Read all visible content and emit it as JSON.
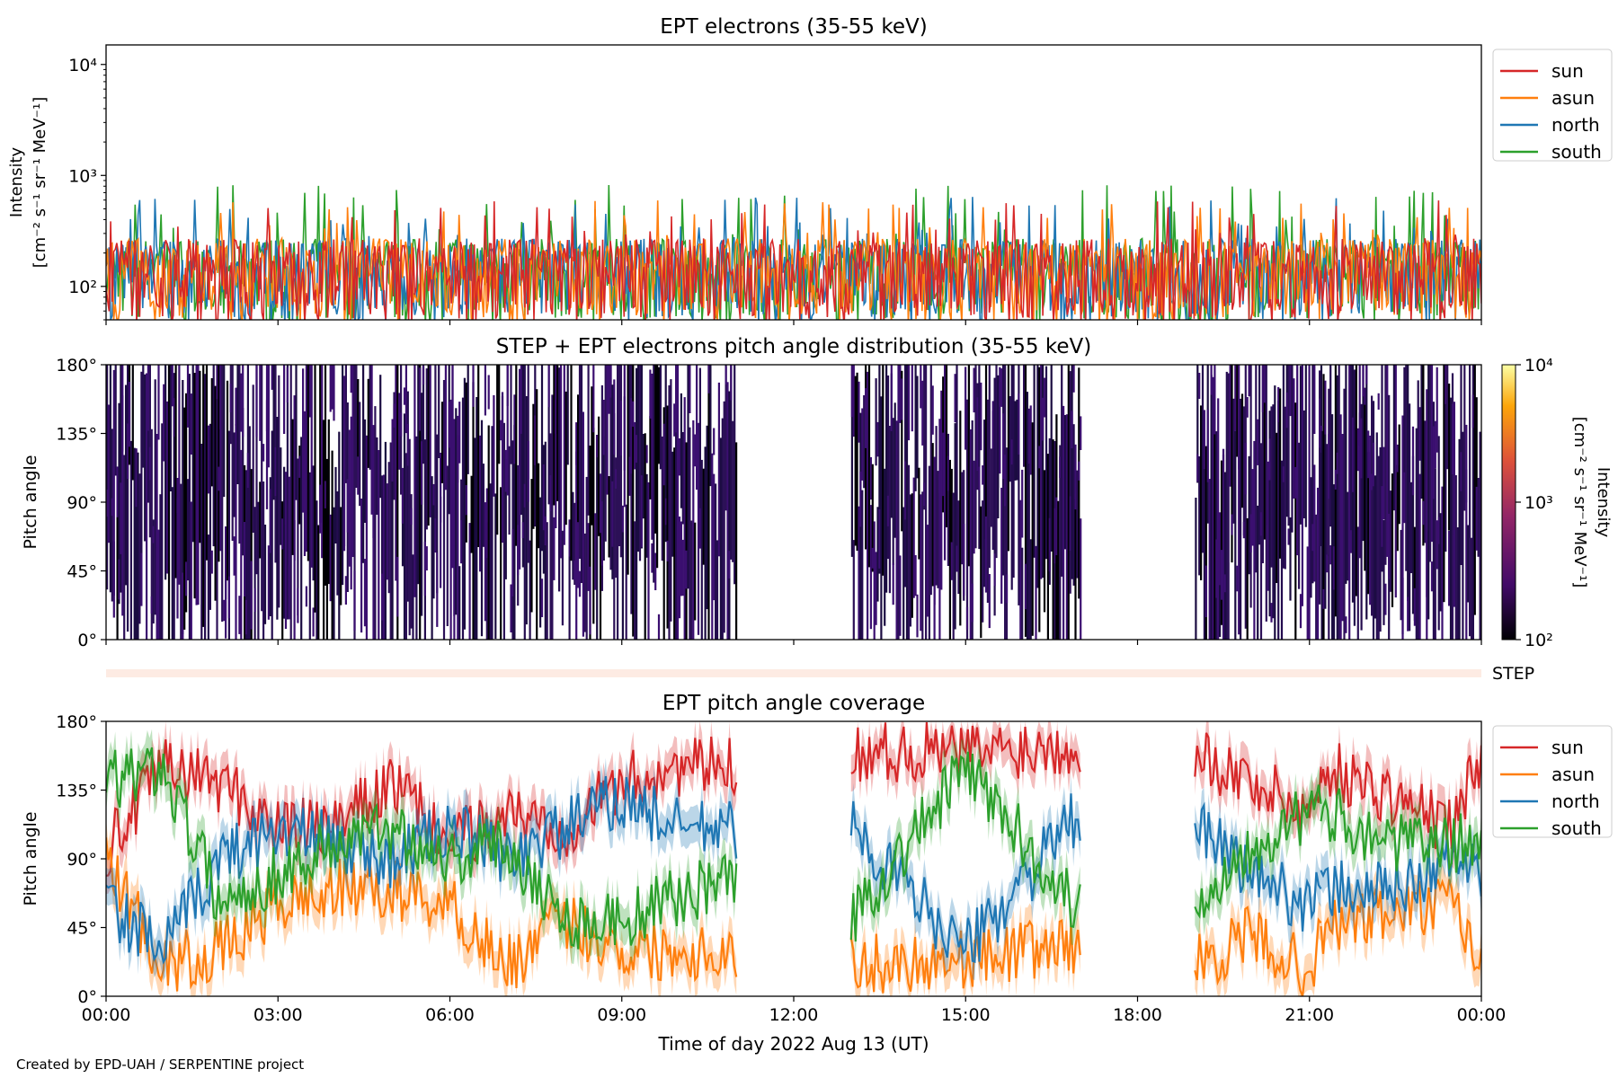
{
  "footer": "Created by EPD-UAH / SERPENTINE project",
  "colors": {
    "sun": "#d62728",
    "asun": "#ff7f0e",
    "north": "#1f77b4",
    "south": "#2ca02c"
  },
  "chart_data": [
    {
      "type": "line",
      "title": "EPT electrons (35-55 keV)",
      "ylabel": [
        "Intensity",
        "[cm⁻² s⁻¹ sr⁻¹ MeV⁻¹]"
      ],
      "yscale": "log",
      "ylim": [
        50,
        15000
      ],
      "yticks": [
        {
          "v": 100,
          "label": "10²"
        },
        {
          "v": 1000,
          "label": "10³"
        },
        {
          "v": 10000,
          "label": "10⁴"
        }
      ],
      "x_range": [
        "2022-08-13T00:00",
        "2022-08-14T00:00"
      ],
      "series": [
        {
          "name": "sun",
          "typical": 150,
          "peak_range": [
            200,
            600
          ]
        },
        {
          "name": "asun",
          "typical": 150,
          "peak_range": [
            200,
            600
          ]
        },
        {
          "name": "north",
          "typical": 150,
          "peak_range": [
            200,
            650
          ]
        },
        {
          "name": "south",
          "typical": 150,
          "peak_range": [
            200,
            820
          ]
        }
      ],
      "legend": "upper right outside"
    },
    {
      "type": "heatmap",
      "title": "STEP + EPT electrons pitch angle distribution (35-55 keV)",
      "ylabel": "Pitch angle",
      "ylim": [
        0,
        180
      ],
      "yticks": [
        "0°",
        "45°",
        "90°",
        "135°",
        "180°"
      ],
      "colorbar": {
        "label": "Intensity",
        "units": "[cm⁻² s⁻¹ sr⁻¹ MeV⁻¹]",
        "scale": "log",
        "range": [
          100,
          10000
        ],
        "ticks": [
          "10²",
          "10³",
          "10⁴"
        ]
      },
      "data_hours": [
        [
          0,
          11
        ],
        [
          13,
          17
        ],
        [
          19,
          21.2
        ],
        [
          21.2,
          24
        ]
      ],
      "typical_intensity": 200
    },
    {
      "type": "bar",
      "label": "STEP",
      "description_value": "coverage strip"
    },
    {
      "type": "line",
      "title": "EPT pitch angle coverage",
      "ylabel": "Pitch angle",
      "ylim": [
        0,
        180
      ],
      "yticks": [
        "0°",
        "45°",
        "90°",
        "135°",
        "180°"
      ],
      "xlabel": "Time of day 2022 Aug 13 (UT)",
      "xticks": [
        "00:00",
        "03:00",
        "06:00",
        "09:00",
        "12:00",
        "15:00",
        "18:00",
        "21:00",
        "00:00"
      ],
      "data_hours": [
        [
          0,
          11
        ],
        [
          13,
          17
        ],
        [
          19,
          21.2
        ],
        [
          21.2,
          24
        ]
      ],
      "series": [
        {
          "name": "sun",
          "anchors": [
            [
              0,
              95
            ],
            [
              1,
              150
            ],
            [
              2,
              140
            ],
            [
              3,
              110
            ],
            [
              4,
              110
            ],
            [
              5,
              140
            ],
            [
              6,
              100
            ],
            [
              7,
              120
            ],
            [
              8,
              110
            ],
            [
              9,
              140
            ],
            [
              10,
              150
            ],
            [
              11,
              150
            ],
            [
              13,
              160
            ],
            [
              15,
              160
            ],
            [
              17,
              165
            ],
            [
              19,
              160
            ],
            [
              20,
              140
            ],
            [
              21,
              120
            ],
            [
              21.3,
              150
            ],
            [
              22.5,
              130
            ],
            [
              23.5,
              110
            ],
            [
              24,
              160
            ]
          ]
        },
        {
          "name": "asun",
          "anchors": [
            [
              0,
              90
            ],
            [
              1,
              20
            ],
            [
              2,
              30
            ],
            [
              3,
              60
            ],
            [
              4,
              70
            ],
            [
              5,
              70
            ],
            [
              6,
              60
            ],
            [
              7,
              20
            ],
            [
              8,
              50
            ],
            [
              9,
              30
            ],
            [
              10,
              30
            ],
            [
              11,
              30
            ],
            [
              13,
              20
            ],
            [
              15,
              25
            ],
            [
              17,
              35
            ],
            [
              19,
              20
            ],
            [
              20,
              40
            ],
            [
              21,
              15
            ],
            [
              21.3,
              45
            ],
            [
              22.5,
              55
            ],
            [
              23.5,
              60
            ],
            [
              24,
              20
            ]
          ]
        },
        {
          "name": "north",
          "anchors": [
            [
              0,
              60
            ],
            [
              1,
              30
            ],
            [
              2,
              90
            ],
            [
              3,
              110
            ],
            [
              4,
              100
            ],
            [
              5,
              90
            ],
            [
              6,
              110
            ],
            [
              7,
              90
            ],
            [
              8,
              110
            ],
            [
              9,
              130
            ],
            [
              10,
              110
            ],
            [
              11,
              110
            ],
            [
              13,
              110
            ],
            [
              15,
              30
            ],
            [
              17,
              120
            ],
            [
              19,
              110
            ],
            [
              20,
              80
            ],
            [
              21,
              60
            ],
            [
              21.3,
              70
            ],
            [
              22.5,
              70
            ],
            [
              23.5,
              90
            ],
            [
              24,
              80
            ]
          ]
        },
        {
          "name": "south",
          "anchors": [
            [
              0,
              140
            ],
            [
              1,
              150
            ],
            [
              2,
              60
            ],
            [
              3,
              80
            ],
            [
              4,
              100
            ],
            [
              5,
              110
            ],
            [
              6,
              90
            ],
            [
              7,
              100
            ],
            [
              8,
              50
            ],
            [
              9,
              50
            ],
            [
              10,
              65
            ],
            [
              11,
              80
            ],
            [
              13,
              50
            ],
            [
              15,
              150
            ],
            [
              17,
              55
            ],
            [
              19,
              60
            ],
            [
              20,
              100
            ],
            [
              21,
              120
            ],
            [
              21.3,
              120
            ],
            [
              22.5,
              100
            ],
            [
              23.5,
              100
            ],
            [
              24,
              100
            ]
          ]
        }
      ],
      "legend": "upper right outside"
    }
  ]
}
